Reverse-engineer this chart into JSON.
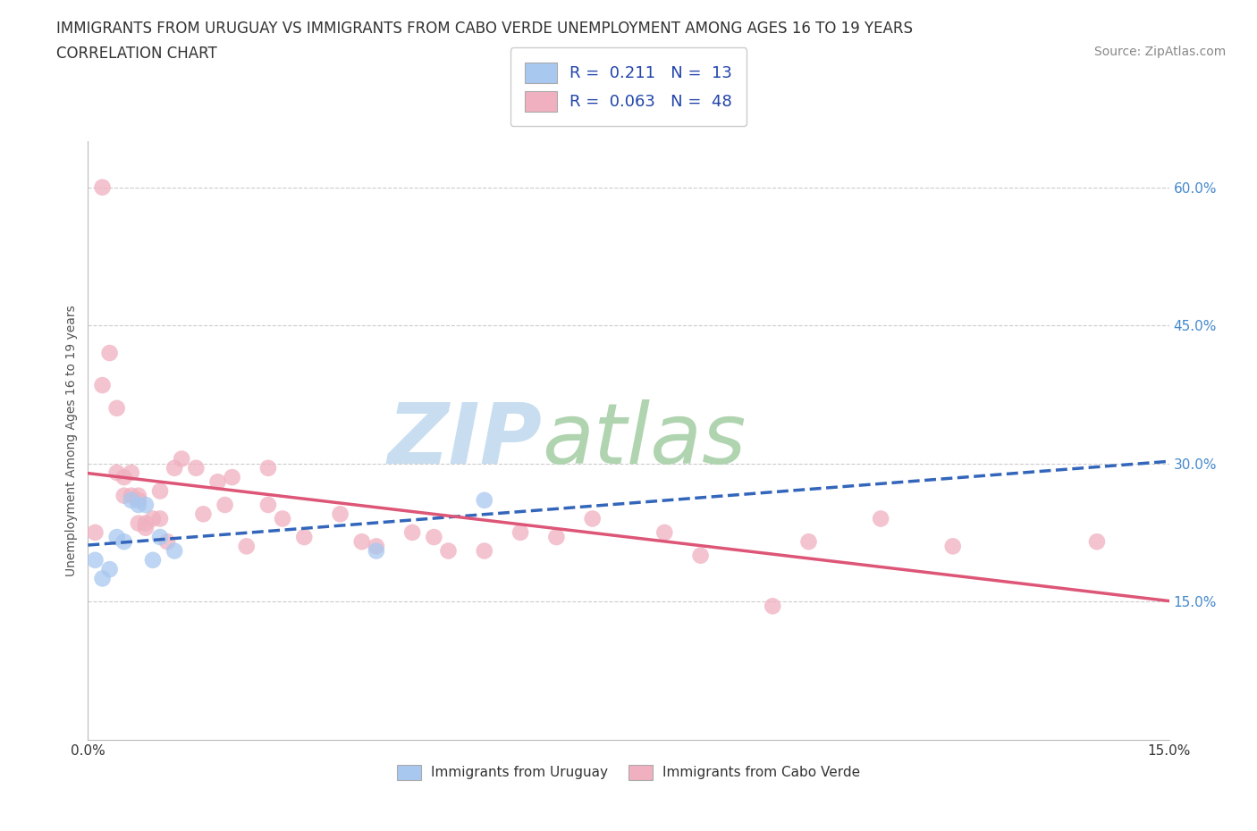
{
  "title_line1": "IMMIGRANTS FROM URUGUAY VS IMMIGRANTS FROM CABO VERDE UNEMPLOYMENT AMONG AGES 16 TO 19 YEARS",
  "title_line2": "CORRELATION CHART",
  "source_text": "Source: ZipAtlas.com",
  "ylabel": "Unemployment Among Ages 16 to 19 years",
  "xlim": [
    0.0,
    0.15
  ],
  "ylim": [
    0.0,
    0.65
  ],
  "xtick_positions": [
    0.0,
    0.015,
    0.03,
    0.045,
    0.06,
    0.075,
    0.09,
    0.105,
    0.12,
    0.135,
    0.15
  ],
  "xtick_labels_show": {
    "0.0": "0.0%",
    "0.15": "15.0%"
  },
  "ytick_positions": [
    0.0,
    0.15,
    0.3,
    0.45,
    0.6
  ],
  "ytick_labels": [
    "",
    "15.0%",
    "30.0%",
    "45.0%",
    "60.0%"
  ],
  "grid_color": "#cccccc",
  "background_color": "#ffffff",
  "watermark_zip": "ZIP",
  "watermark_atlas": "atlas",
  "watermark_color_zip": "#c5dff0",
  "watermark_color_atlas": "#aad0a0",
  "uruguay_color": "#a8c8f0",
  "cabo_verde_color": "#f0b0c0",
  "uruguay_line_color": "#3366bb",
  "cabo_verde_line_color": "#dd5577",
  "R_uruguay": 0.211,
  "N_uruguay": 13,
  "R_cabo_verde": 0.063,
  "N_cabo_verde": 48,
  "uruguay_x": [
    0.001,
    0.002,
    0.003,
    0.004,
    0.005,
    0.006,
    0.007,
    0.008,
    0.009,
    0.01,
    0.012,
    0.04,
    0.055
  ],
  "uruguay_y": [
    0.195,
    0.175,
    0.185,
    0.22,
    0.215,
    0.26,
    0.255,
    0.255,
    0.195,
    0.22,
    0.205,
    0.205,
    0.26
  ],
  "cabo_verde_x": [
    0.001,
    0.002,
    0.002,
    0.003,
    0.004,
    0.004,
    0.005,
    0.005,
    0.006,
    0.006,
    0.007,
    0.007,
    0.007,
    0.008,
    0.008,
    0.009,
    0.01,
    0.01,
    0.011,
    0.012,
    0.013,
    0.015,
    0.016,
    0.018,
    0.019,
    0.02,
    0.022,
    0.025,
    0.025,
    0.027,
    0.03,
    0.035,
    0.038,
    0.04,
    0.045,
    0.048,
    0.05,
    0.055,
    0.06,
    0.065,
    0.07,
    0.08,
    0.085,
    0.095,
    0.1,
    0.11,
    0.12,
    0.14
  ],
  "cabo_verde_y": [
    0.225,
    0.6,
    0.385,
    0.42,
    0.36,
    0.29,
    0.285,
    0.265,
    0.29,
    0.265,
    0.265,
    0.26,
    0.235,
    0.235,
    0.23,
    0.24,
    0.24,
    0.27,
    0.215,
    0.295,
    0.305,
    0.295,
    0.245,
    0.28,
    0.255,
    0.285,
    0.21,
    0.295,
    0.255,
    0.24,
    0.22,
    0.245,
    0.215,
    0.21,
    0.225,
    0.22,
    0.205,
    0.205,
    0.225,
    0.22,
    0.24,
    0.225,
    0.2,
    0.145,
    0.215,
    0.24,
    0.21,
    0.215
  ],
  "title_fontsize": 12,
  "subtitle_fontsize": 12,
  "axis_label_fontsize": 10,
  "tick_fontsize": 11,
  "legend_fontsize": 13,
  "source_fontsize": 10
}
